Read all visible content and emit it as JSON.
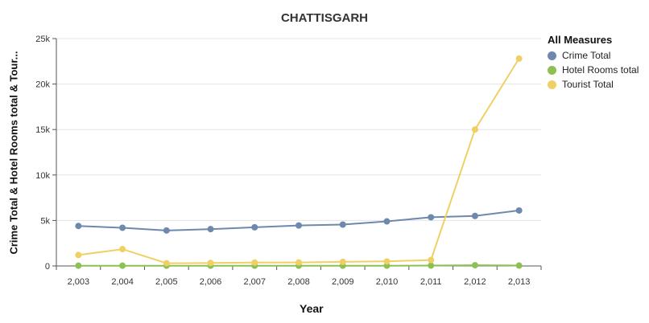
{
  "chart_data": {
    "type": "line",
    "title": "CHATTISGARH",
    "xlabel": "Year",
    "ylabel": "Crime Total & Hotel Rooms total & Tour...",
    "categories": [
      "2,003",
      "2,004",
      "2,005",
      "2,006",
      "2,007",
      "2,008",
      "2,009",
      "2,010",
      "2,011",
      "2,012",
      "2,013"
    ],
    "ylim": [
      0,
      25000
    ],
    "yticks": [
      {
        "value": 0,
        "label": "0"
      },
      {
        "value": 5000,
        "label": "5k"
      },
      {
        "value": 10000,
        "label": "10k"
      },
      {
        "value": 15000,
        "label": "15k"
      },
      {
        "value": 20000,
        "label": "20k"
      },
      {
        "value": 25000,
        "label": "25k"
      }
    ],
    "grid": "horizontal",
    "legend": {
      "title": "All Measures",
      "placement": "right"
    },
    "series": [
      {
        "name": "Crime Total",
        "color": "#6f88ae",
        "values": [
          4400,
          4200,
          3900,
          4050,
          4250,
          4450,
          4550,
          4900,
          5350,
          5500,
          6100
        ]
      },
      {
        "name": "Hotel Rooms total",
        "color": "#8cc152",
        "values": [
          30,
          30,
          30,
          30,
          30,
          30,
          30,
          30,
          40,
          80,
          40
        ]
      },
      {
        "name": "Tourist Total",
        "color": "#f0d064",
        "values": [
          1200,
          1850,
          300,
          330,
          370,
          390,
          450,
          500,
          650,
          15000,
          22800
        ]
      }
    ]
  }
}
